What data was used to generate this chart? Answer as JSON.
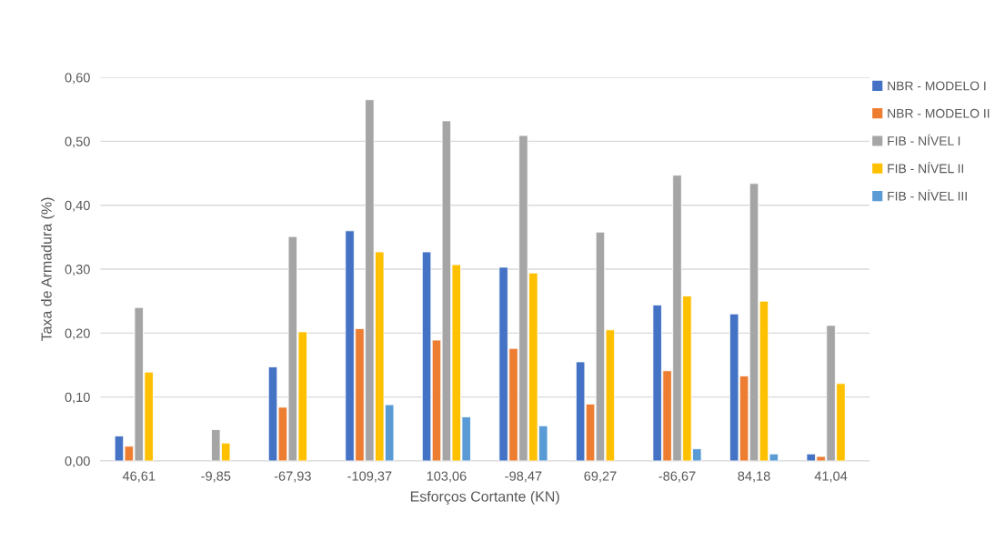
{
  "chart_data": {
    "type": "bar",
    "xlabel": "Esforços Cortante (KN)",
    "ylabel": "Taxa de Armadura (%)",
    "categories": [
      "46,61",
      "-9,85",
      "-67,93",
      "-109,37",
      "103,06",
      "-98,47",
      "69,27",
      "-86,67",
      "84,18",
      "41,04"
    ],
    "series": [
      {
        "name": "NBR - MODELO I",
        "color": "#4472c4",
        "values": [
          0.039,
          null,
          0.147,
          0.36,
          0.327,
          0.303,
          0.155,
          0.244,
          0.23,
          0.011
        ]
      },
      {
        "name": "NBR - MODELO II",
        "color": "#ed7d31",
        "values": [
          0.023,
          null,
          0.084,
          0.207,
          0.189,
          0.176,
          0.089,
          0.141,
          0.133,
          0.007
        ]
      },
      {
        "name": "FIB - NÍVEL I",
        "color": "#a5a5a5",
        "values": [
          0.24,
          0.049,
          0.351,
          0.565,
          0.532,
          0.509,
          0.358,
          0.447,
          0.434,
          0.212
        ]
      },
      {
        "name": "FIB - NÍVEL II",
        "color": "#ffc000",
        "values": [
          0.139,
          0.028,
          0.202,
          0.327,
          0.307,
          0.294,
          0.205,
          0.258,
          0.25,
          0.121
        ]
      },
      {
        "name": "FIB - NÍVEL III",
        "color": "#5b9bd5",
        "values": [
          null,
          null,
          null,
          0.088,
          0.069,
          0.055,
          null,
          0.019,
          0.011,
          null
        ]
      }
    ],
    "ylim": [
      0,
      0.6
    ],
    "yticks": [
      {
        "value": 0,
        "label": "0,00"
      },
      {
        "value": 0.1,
        "label": "0,10"
      },
      {
        "value": 0.2,
        "label": "0,20"
      },
      {
        "value": 0.3,
        "label": "0,30"
      },
      {
        "value": 0.4,
        "label": "0,40"
      },
      {
        "value": 0.5,
        "label": "0,50"
      },
      {
        "value": 0.6,
        "label": "0,60"
      }
    ],
    "grid": "y",
    "legend": "right"
  }
}
